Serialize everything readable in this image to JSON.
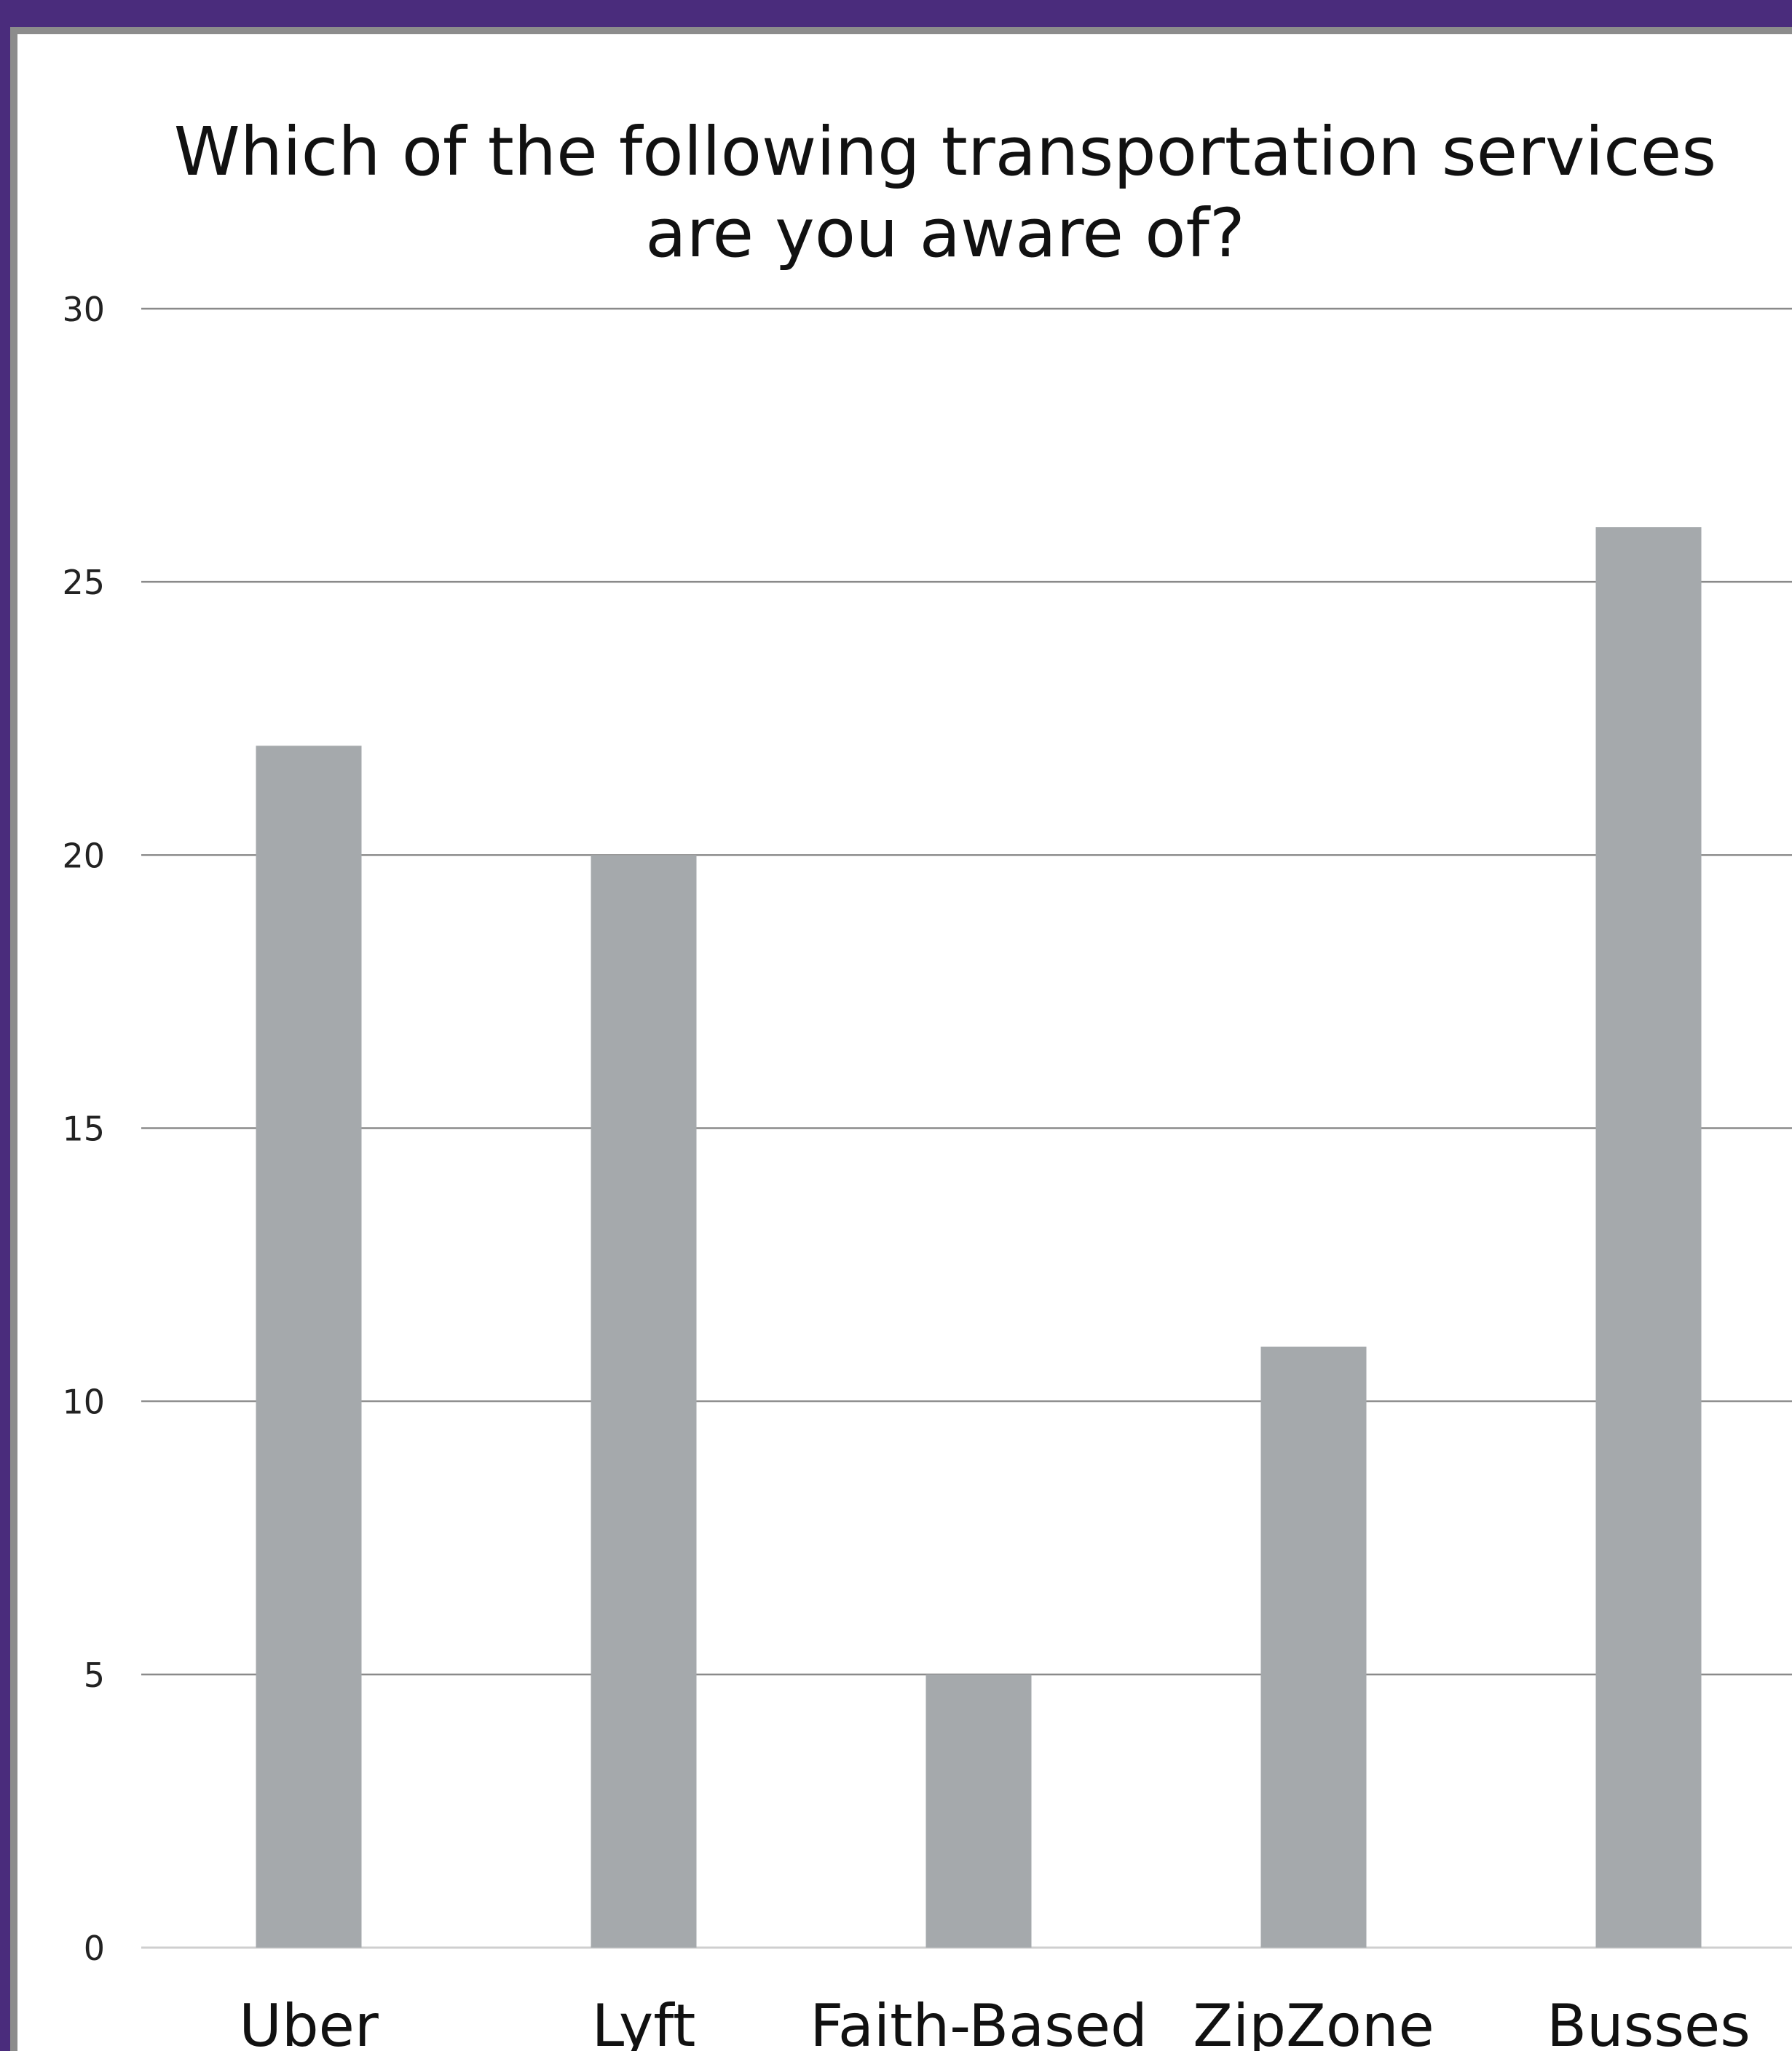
{
  "colors": {
    "frame": "#4a2c7c",
    "panel": "#ffffff",
    "bar": "#a5a9ac",
    "grid": "#8a8a8a"
  },
  "chart_data": {
    "type": "bar",
    "title": "Which of the following transportation services are you aware of?",
    "title_lines": [
      "Which of the following transportation services",
      "are you aware of?"
    ],
    "xlabel": "",
    "ylabel": "",
    "categories": [
      "Uber",
      "Lyft",
      "Faith-Based",
      "ZipZone",
      "Busses"
    ],
    "values": [
      22,
      20,
      5,
      11,
      26
    ],
    "ylim": [
      0,
      30
    ],
    "yticks": [
      0,
      5,
      10,
      15,
      20,
      25,
      30
    ],
    "grid": true,
    "legend": "none"
  }
}
